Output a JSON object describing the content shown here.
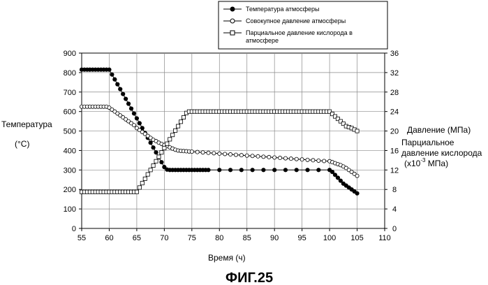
{
  "chart_data": {
    "type": "line",
    "xlabel": "Время (ч)",
    "ylabel_left": [
      "Температура",
      "(°C)"
    ],
    "ylabel_right": [
      "Давление (МПа)",
      "Парциальное",
      "давление кислорода",
      "(х10",
      "-3",
      " МПа)"
    ],
    "x_ticks": [
      55,
      60,
      65,
      70,
      75,
      80,
      85,
      90,
      95,
      100,
      105,
      110
    ],
    "xlim": [
      55,
      110
    ],
    "y_left_ticks": [
      0,
      100,
      200,
      300,
      400,
      500,
      600,
      700,
      800,
      900
    ],
    "ylim_left": [
      0,
      900
    ],
    "y_right_ticks": [
      0,
      4,
      8,
      12,
      16,
      20,
      24,
      28,
      32,
      36
    ],
    "ylim_right": [
      0,
      36
    ],
    "grid": true,
    "legend_position": "top-right",
    "series": [
      {
        "name": "Температура атмосферы",
        "axis": "left",
        "marker": "filled-circle",
        "x": [
          55,
          55.5,
          56,
          56.5,
          57,
          57.5,
          58,
          58.5,
          59,
          59.5,
          60,
          60.5,
          61,
          61.5,
          62,
          62.5,
          63,
          63.5,
          64,
          64.5,
          65,
          65.5,
          66,
          66.5,
          67,
          67.5,
          68,
          68.5,
          69,
          69.5,
          70,
          70.5,
          71,
          71.5,
          72,
          72.5,
          73,
          73.5,
          74,
          74.5,
          75,
          75.5,
          76,
          76.5,
          77,
          77.5,
          78,
          80,
          82,
          84,
          86,
          88,
          90,
          92,
          94,
          96,
          98,
          100,
          100.5,
          101,
          101.5,
          102,
          102.5,
          103,
          103.5,
          104,
          104.5,
          105
        ],
        "values": [
          815,
          815,
          815,
          815,
          815,
          815,
          815,
          815,
          815,
          815,
          815,
          790,
          765,
          740,
          715,
          690,
          665,
          640,
          615,
          590,
          565,
          540,
          515,
          490,
          465,
          440,
          415,
          390,
          365,
          340,
          315,
          302,
          300,
          300,
          300,
          300,
          300,
          300,
          300,
          300,
          300,
          300,
          300,
          300,
          300,
          300,
          300,
          300,
          300,
          300,
          300,
          300,
          300,
          300,
          300,
          300,
          300,
          300,
          290,
          275,
          260,
          245,
          230,
          220,
          210,
          200,
          190,
          180
        ]
      },
      {
        "name": "Совокупное давление атмосферы",
        "axis": "left",
        "marker": "open-circle",
        "x": [
          55,
          55.5,
          56,
          56.5,
          57,
          57.5,
          58,
          58.5,
          59,
          59.5,
          60,
          60.5,
          61,
          61.5,
          62,
          62.5,
          63,
          63.5,
          64,
          64.5,
          65,
          65.5,
          66,
          66.5,
          67,
          67.5,
          68,
          68.5,
          69,
          69.5,
          70,
          70.5,
          71,
          71.5,
          72,
          72.5,
          73,
          73.5,
          74,
          74.5,
          75,
          76,
          77,
          78,
          79,
          80,
          81,
          82,
          83,
          84,
          85,
          86,
          87,
          88,
          89,
          90,
          91,
          92,
          93,
          94,
          95,
          96,
          97,
          98,
          99,
          100,
          100.5,
          101,
          101.5,
          102,
          102.5,
          103,
          103.5,
          104,
          104.5,
          105
        ],
        "values": [
          625,
          625,
          625,
          625,
          625,
          625,
          625,
          625,
          625,
          625,
          620,
          610,
          600,
          590,
          580,
          570,
          560,
          550,
          540,
          530,
          515,
          505,
          495,
          485,
          475,
          465,
          455,
          448,
          440,
          434,
          428,
          422,
          416,
          410,
          404,
          400,
          398,
          397,
          396,
          395,
          394,
          392,
          390,
          388,
          386,
          384,
          382,
          380,
          378,
          376,
          374,
          372,
          370,
          368,
          366,
          364,
          362,
          360,
          358,
          356,
          354,
          352,
          350,
          348,
          346,
          345,
          340,
          335,
          330,
          325,
          318,
          310,
          300,
          290,
          280,
          270
        ]
      },
      {
        "name": "Парциальное давление кислорода в атмосфере",
        "axis": "right",
        "marker": "open-square",
        "x": [
          55,
          55.5,
          56,
          56.5,
          57,
          57.5,
          58,
          58.5,
          59,
          59.5,
          60,
          60.5,
          61,
          61.5,
          62,
          62.5,
          63,
          63.5,
          64,
          64.5,
          65,
          65.5,
          66,
          66.5,
          67,
          67.5,
          68,
          68.5,
          69,
          69.5,
          70,
          70.5,
          71,
          71.5,
          72,
          72.5,
          73,
          73.5,
          74,
          74.5,
          75,
          75.5,
          76,
          76.5,
          77,
          77.5,
          78,
          78.5,
          79,
          79.5,
          80,
          80.5,
          81,
          81.5,
          82,
          82.5,
          83,
          83.5,
          84,
          84.5,
          85,
          85.5,
          86,
          86.5,
          87,
          87.5,
          88,
          88.5,
          89,
          89.5,
          90,
          90.5,
          91,
          91.5,
          92,
          92.5,
          93,
          93.5,
          94,
          94.5,
          95,
          95.5,
          96,
          96.5,
          97,
          97.5,
          98,
          98.5,
          99,
          99.5,
          100,
          100.5,
          101,
          101.5,
          102,
          102.5,
          103,
          103.5,
          104,
          104.5,
          105
        ],
        "values": [
          7.5,
          7.5,
          7.5,
          7.5,
          7.5,
          7.5,
          7.5,
          7.5,
          7.5,
          7.5,
          7.5,
          7.5,
          7.5,
          7.5,
          7.5,
          7.5,
          7.5,
          7.5,
          7.5,
          7.5,
          7.5,
          8.4,
          9.3,
          10.2,
          11.1,
          12.0,
          12.9,
          13.8,
          14.7,
          15.6,
          16.5,
          17.4,
          18.3,
          19.2,
          20.1,
          21.0,
          21.9,
          22.8,
          23.7,
          24,
          24,
          24,
          24,
          24,
          24,
          24,
          24,
          24,
          24,
          24,
          24,
          24,
          24,
          24,
          24,
          24,
          24,
          24,
          24,
          24,
          24,
          24,
          24,
          24,
          24,
          24,
          24,
          24,
          24,
          24,
          24,
          24,
          24,
          24,
          24,
          24,
          24,
          24,
          24,
          24,
          24,
          24,
          24,
          24,
          24,
          24,
          24,
          24,
          24,
          24,
          24,
          23.5,
          23,
          22.5,
          22,
          21.5,
          21,
          20.8,
          20.6,
          20.3,
          20
        ]
      }
    ]
  },
  "figure_caption": "ФИГ.25"
}
